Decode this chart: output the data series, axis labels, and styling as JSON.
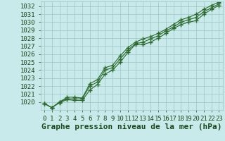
{
  "title": "Graphe pression niveau de la mer (hPa)",
  "xlabel_hours": [
    0,
    1,
    2,
    3,
    4,
    5,
    6,
    7,
    8,
    9,
    10,
    11,
    12,
    13,
    14,
    15,
    16,
    17,
    18,
    19,
    20,
    21,
    22,
    23
  ],
  "line1": [
    1019.8,
    1019.3,
    1019.9,
    1020.3,
    1020.2,
    1020.2,
    1021.5,
    1022.2,
    1023.5,
    1024.0,
    1025.0,
    1026.2,
    1027.2,
    1027.2,
    1027.5,
    1028.0,
    1028.6,
    1029.2,
    1029.7,
    1030.0,
    1030.2,
    1031.0,
    1031.6,
    1032.1
  ],
  "line2": [
    1019.8,
    1019.3,
    1020.0,
    1020.4,
    1020.4,
    1020.4,
    1022.0,
    1022.5,
    1024.0,
    1024.3,
    1025.4,
    1026.5,
    1027.3,
    1027.5,
    1027.9,
    1028.3,
    1028.9,
    1029.4,
    1030.0,
    1030.3,
    1030.6,
    1031.3,
    1031.8,
    1032.3
  ],
  "line3": [
    1019.8,
    1019.3,
    1020.0,
    1020.6,
    1020.6,
    1020.5,
    1022.3,
    1022.8,
    1024.3,
    1024.6,
    1025.8,
    1026.8,
    1027.5,
    1027.9,
    1028.2,
    1028.6,
    1029.1,
    1029.7,
    1030.3,
    1030.6,
    1031.0,
    1031.6,
    1032.1,
    1032.5
  ],
  "line_color": "#2d6a2d",
  "bg_color": "#c8eaea",
  "grid_color": "#9ec4c4",
  "title_color": "#1a4a1a",
  "tick_color": "#1a4a1a",
  "ylim": [
    1019.0,
    1032.6
  ],
  "yticks": [
    1020,
    1021,
    1022,
    1023,
    1024,
    1025,
    1026,
    1027,
    1028,
    1029,
    1030,
    1031,
    1032
  ],
  "title_fontsize": 8,
  "tick_fontsize": 6.5
}
